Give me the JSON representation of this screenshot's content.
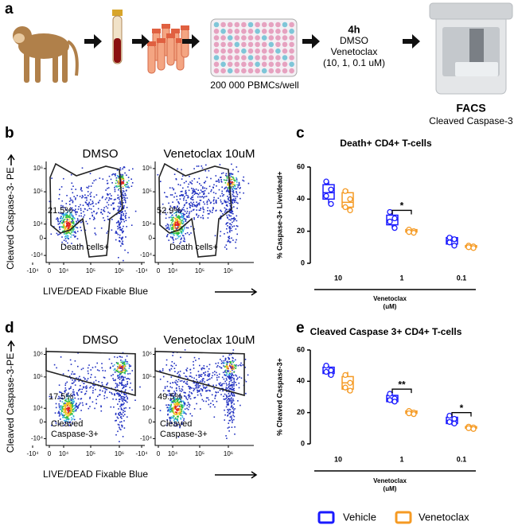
{
  "panel_a": {
    "letter": "a",
    "time": "4h",
    "treatments": [
      "DMSO",
      "Venetoclax",
      "(10, 1, 0.1 uM)"
    ],
    "plate_label": "200 000 PBMCs/well",
    "readout_title": "FACS",
    "readout_subtitle": "Cleaved Caspase-3"
  },
  "flow": [
    {
      "letter": "b",
      "y_label": "Cleaved Caspase-3- PE",
      "x_label": "LIVE/DEAD Fixable Blue",
      "x_ticks": [
        "-10⁴",
        "0",
        "10⁴",
        "10⁵",
        "10⁶"
      ],
      "y_ticks": [
        "10⁶",
        "10⁵",
        "10⁴",
        "0",
        "-10⁴"
      ],
      "plots": [
        {
          "title": "DMSO",
          "gate_percent": "21.5%",
          "gate_label": [
            "Death cells+"
          ]
        },
        {
          "title": "Venetoclax 10uM",
          "gate_percent": "52.9%",
          "gate_label": [
            "Death cells+"
          ]
        }
      ]
    },
    {
      "letter": "d",
      "y_label": "Cleaved Caspase-3-PE",
      "x_label": "LIVE/DEAD Fixable Blue",
      "x_ticks": [
        "-10⁴",
        "0",
        "10⁴",
        "10⁵",
        "10⁶"
      ],
      "y_ticks": [
        "10⁶",
        "10⁵",
        "10⁴",
        "0",
        "-10⁴"
      ],
      "plots": [
        {
          "title": "DMSO",
          "gate_percent": "17.5%",
          "gate_label": [
            "Cleaved",
            "Caspase-3+"
          ]
        },
        {
          "title": "Venetoclax 10uM",
          "gate_percent": "49.5%",
          "gate_label": [
            "Cleaved",
            "Caspase-3+"
          ]
        }
      ]
    }
  ],
  "chart_data": [
    {
      "type": "box",
      "letter": "c",
      "title": "Death+ CD4+ T-cells",
      "y_label": "% Caspase-3+ Live/dead+",
      "x_label": [
        "Venetoclax",
        "(uM)"
      ],
      "categories": [
        "10",
        "1",
        "0.1"
      ],
      "ylim": [
        0,
        60
      ],
      "yticks": [
        0,
        20,
        40,
        60
      ],
      "series": [
        {
          "name": "Vehicle",
          "color": "#1a1aff",
          "values": [
            {
              "min": 37,
              "q1": 40,
              "median": 44,
              "q3": 49,
              "max": 51,
              "points": [
                51,
                46,
                42,
                37
              ]
            },
            {
              "min": 22,
              "q1": 24,
              "median": 27,
              "q3": 30,
              "max": 32,
              "points": [
                32,
                28,
                26,
                22
              ]
            },
            {
              "min": 11,
              "q1": 12,
              "median": 14,
              "q3": 16,
              "max": 17,
              "points": [
                16,
                15,
                13,
                11
              ]
            }
          ]
        },
        {
          "name": "Venetoclax",
          "color": "#f59a23",
          "values": [
            {
              "min": 33,
              "q1": 35,
              "median": 38,
              "q3": 44,
              "max": 46,
              "points": [
                45,
                40,
                35,
                33
              ]
            },
            {
              "min": 19,
              "q1": 19.5,
              "median": 20,
              "q3": 21,
              "max": 21.5,
              "points": [
                21,
                20,
                19.5,
                19
              ]
            },
            {
              "min": 9.5,
              "q1": 10,
              "median": 10.5,
              "q3": 11,
              "max": 11.5,
              "points": [
                11,
                10.5,
                10,
                9.5
              ]
            }
          ]
        }
      ],
      "annotations": [
        {
          "text": "*",
          "category": "1",
          "y": 33
        }
      ]
    },
    {
      "type": "box",
      "letter": "e",
      "title": "Cleaved Caspase 3+ CD4+ T-cells",
      "y_label": "% Cleaved Caspase-3+",
      "x_label": [
        "Venetoclax",
        "(uM)"
      ],
      "categories": [
        "10",
        "1",
        "0.1"
      ],
      "ylim": [
        0,
        60
      ],
      "yticks": [
        0,
        20,
        40,
        60
      ],
      "series": [
        {
          "name": "Vehicle",
          "color": "#1a1aff",
          "values": [
            {
              "min": 43,
              "q1": 45,
              "median": 46,
              "q3": 49,
              "max": 50,
              "points": [
                50,
                47,
                46,
                44
              ]
            },
            {
              "min": 26,
              "q1": 27,
              "median": 29,
              "q3": 31,
              "max": 33,
              "points": [
                32,
                29,
                28,
                27
              ]
            },
            {
              "min": 12,
              "q1": 13,
              "median": 15,
              "q3": 17,
              "max": 19,
              "points": [
                18,
                16,
                14,
                13
              ]
            }
          ]
        },
        {
          "name": "Venetoclax",
          "color": "#f59a23",
          "values": [
            {
              "min": 33,
              "q1": 35,
              "median": 39,
              "q3": 43,
              "max": 46,
              "points": [
                44,
                39,
                36,
                34
              ]
            },
            {
              "min": 19,
              "q1": 19.5,
              "median": 20,
              "q3": 21,
              "max": 22,
              "points": [
                21,
                20,
                19.5,
                19
              ]
            },
            {
              "min": 9.5,
              "q1": 10,
              "median": 10.5,
              "q3": 11,
              "max": 11.5,
              "points": [
                11,
                10.5,
                10,
                9.5
              ]
            }
          ]
        }
      ],
      "annotations": [
        {
          "text": "**",
          "category": "1",
          "y": 35
        },
        {
          "text": "*",
          "category": "0.1",
          "y": 20
        }
      ]
    }
  ]
}
